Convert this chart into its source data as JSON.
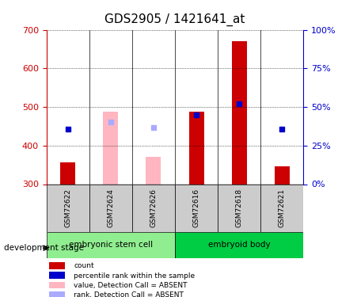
{
  "title": "GDS2905 / 1421641_at",
  "samples": [
    "GSM72622",
    "GSM72624",
    "GSM72626",
    "GSM72616",
    "GSM72618",
    "GSM72621"
  ],
  "groups": [
    {
      "name": "embryonic stem cell",
      "samples": [
        "GSM72622",
        "GSM72624",
        "GSM72626"
      ],
      "color": "#90EE90"
    },
    {
      "name": "embryoid body",
      "samples": [
        "GSM72616",
        "GSM72618",
        "GSM72621"
      ],
      "color": "#00CC44"
    }
  ],
  "bar_values": [
    357,
    null,
    null,
    487,
    670,
    347
  ],
  "bar_colors_solid": [
    "#CC0000",
    null,
    null,
    "#CC0000",
    "#CC0000",
    "#CC0000"
  ],
  "absent_bar_values": [
    null,
    487,
    370,
    null,
    null,
    null
  ],
  "absent_bar_color": "#FFB6C1",
  "blue_dot_values": [
    443,
    null,
    null,
    480,
    508,
    443
  ],
  "blue_dot_color": "#0000CC",
  "absent_blue_dot_values": [
    null,
    462,
    447,
    null,
    null,
    null
  ],
  "absent_blue_dot_color": "#AAAAFF",
  "ylim_left": [
    300,
    700
  ],
  "ylim_right": [
    0,
    100
  ],
  "yticks_left": [
    300,
    400,
    500,
    600,
    700
  ],
  "yticks_right": [
    0,
    25,
    50,
    75,
    100
  ],
  "ytick_labels_right": [
    "0%",
    "25%",
    "50%",
    "75%",
    "100%"
  ],
  "bar_bottom": 300,
  "group_label": "development stage",
  "legend_items": [
    {
      "label": "count",
      "color": "#CC0000",
      "type": "rect"
    },
    {
      "label": "percentile rank within the sample",
      "color": "#0000CC",
      "type": "rect"
    },
    {
      "label": "value, Detection Call = ABSENT",
      "color": "#FFB6C1",
      "type": "rect"
    },
    {
      "label": "rank, Detection Call = ABSENT",
      "color": "#AAAAFF",
      "type": "rect"
    }
  ],
  "figsize": [
    4.51,
    3.75
  ],
  "dpi": 100,
  "left_axis_color": "#CC0000",
  "right_axis_color": "#0000CC",
  "title_fontsize": 11,
  "tick_fontsize": 8,
  "label_fontsize": 8,
  "bar_width": 0.35
}
